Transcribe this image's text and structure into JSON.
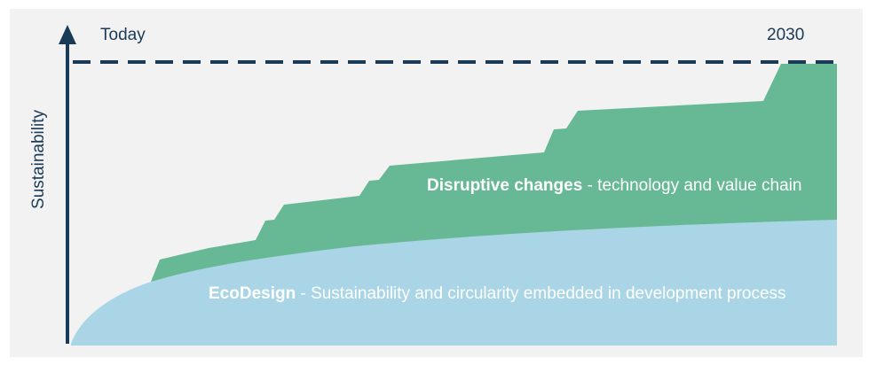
{
  "diagram": {
    "start_label": "Today",
    "end_label": "2030",
    "y_axis_label": "Sustainability",
    "top_layer": {
      "title": "Disruptive changes",
      "description": " - technology and value chain",
      "color": "#66b994"
    },
    "bottom_layer": {
      "title": "EcoDesign",
      "description": " - Sustainability and circularity embedded in development process",
      "color": "#a9d5e6"
    },
    "axis_color": "#1b3a57",
    "background": "#f2f2f2"
  }
}
